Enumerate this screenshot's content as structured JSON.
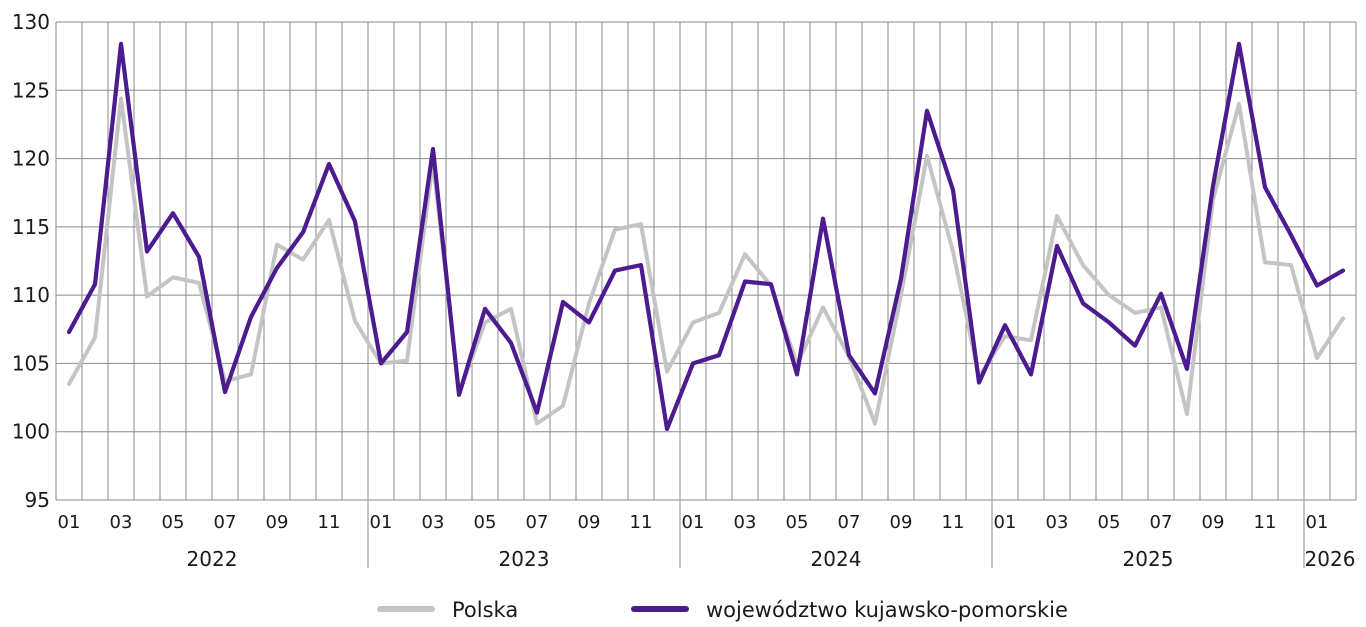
{
  "chart_data": {
    "type": "line",
    "title": "",
    "xlabel": "",
    "ylabel": "",
    "ylim": [
      95,
      130
    ],
    "y_ticks": [
      95,
      100,
      105,
      110,
      115,
      120,
      125,
      130
    ],
    "x": [
      "2022-01",
      "2022-02",
      "2022-03",
      "2022-04",
      "2022-05",
      "2022-06",
      "2022-07",
      "2022-08",
      "2022-09",
      "2022-10",
      "2022-11",
      "2022-12",
      "2023-01",
      "2023-02",
      "2023-03",
      "2023-04",
      "2023-05",
      "2023-06",
      "2023-07",
      "2023-08",
      "2023-09",
      "2023-10",
      "2023-11",
      "2023-12",
      "2024-01",
      "2024-02",
      "2024-03",
      "2024-04",
      "2024-05",
      "2024-06",
      "2024-07",
      "2024-08",
      "2024-09",
      "2024-10",
      "2024-11",
      "2024-12",
      "2025-01",
      "2025-02",
      "2025-03",
      "2025-04",
      "2025-05",
      "2025-06",
      "2025-07",
      "2025-08",
      "2025-09",
      "2025-10",
      "2025-11",
      "2025-12",
      "2026-01",
      "2026-02"
    ],
    "x_tick_labels": [
      "01",
      "03",
      "05",
      "07",
      "09",
      "11",
      "01",
      "03",
      "05",
      "07",
      "09",
      "11",
      "01",
      "03",
      "05",
      "07",
      "09",
      "11",
      "01",
      "03",
      "05",
      "07",
      "09",
      "11",
      "01"
    ],
    "year_labels": [
      "2022",
      "2023",
      "2024",
      "2025",
      "2026"
    ],
    "grid": true,
    "legend_position": "bottom",
    "series": [
      {
        "name": "Polska",
        "color": "#c4c4c4",
        "values": [
          103.5,
          106.9,
          124.4,
          109.9,
          111.3,
          110.9,
          103.7,
          104.2,
          113.7,
          112.6,
          115.5,
          108.1,
          105.0,
          105.2,
          119.8,
          102.8,
          108.0,
          109.0,
          100.6,
          101.9,
          109.4,
          114.8,
          115.2,
          104.4,
          108.0,
          108.7,
          113.0,
          110.7,
          104.9,
          109.1,
          105.5,
          100.6,
          110.0,
          120.2,
          113.2,
          104.0,
          107.0,
          106.7,
          115.8,
          112.2,
          110.0,
          108.7,
          109.1,
          101.3,
          117.0,
          124.0,
          112.4,
          112.2,
          105.4,
          108.3
        ]
      },
      {
        "name": "województwo kujawsko-pomorskie",
        "color": "#4b1b8f",
        "values": [
          107.3,
          110.8,
          128.4,
          113.2,
          116.0,
          112.8,
          102.9,
          108.4,
          112.0,
          114.6,
          119.6,
          115.4,
          105.0,
          107.3,
          120.7,
          102.7,
          109.0,
          106.5,
          101.4,
          109.5,
          108.0,
          111.8,
          112.2,
          100.2,
          105.0,
          105.6,
          111.0,
          110.8,
          104.2,
          115.6,
          105.6,
          102.8,
          111.2,
          123.5,
          117.7,
          103.6,
          107.8,
          104.2,
          113.6,
          109.4,
          108.0,
          106.3,
          110.1,
          104.6,
          118.0,
          128.4,
          117.9,
          114.4,
          110.7,
          111.8
        ]
      }
    ]
  }
}
